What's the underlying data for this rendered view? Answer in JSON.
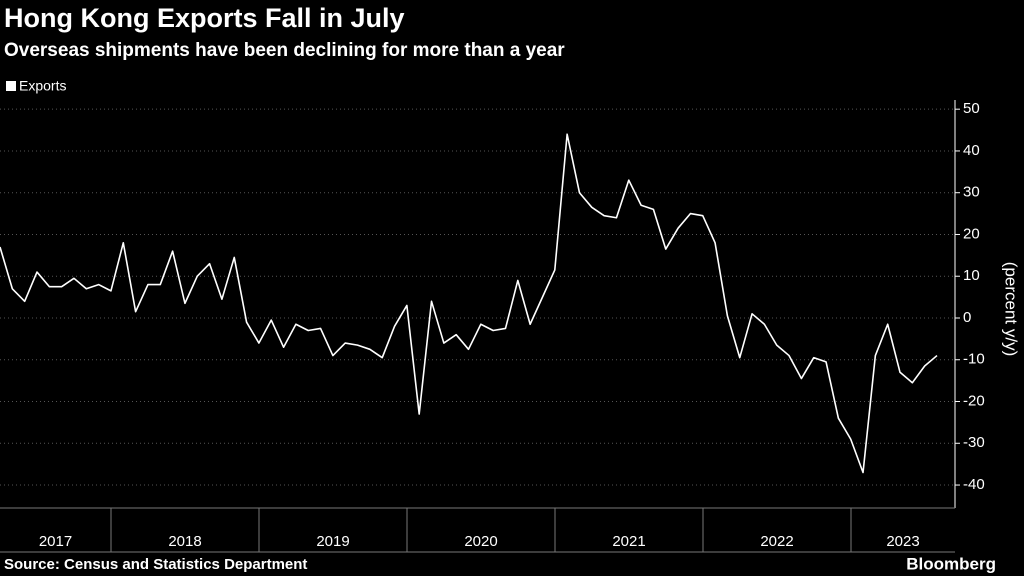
{
  "chart_data": {
    "type": "line",
    "title": "Hong Kong Exports Fall in July",
    "subtitle": "Overseas shipments have been declining for more than a year",
    "y_label": "(percent y/y)",
    "source": "Source: Census and Statistics Department",
    "brand": "Bloomberg",
    "year_labels": [
      "2017",
      "2018",
      "2019",
      "2020",
      "2021",
      "2022",
      "2023"
    ],
    "series": [
      {
        "name": "Exports",
        "color": "#ffffff",
        "values": [
          17,
          7,
          4,
          11,
          7.5,
          7.5,
          9.5,
          7,
          8,
          6.5,
          18,
          1.5,
          8,
          8,
          16,
          3.5,
          10,
          13,
          4.5,
          14.5,
          -1,
          -6,
          -0.5,
          -7,
          -1.5,
          -3,
          -2.5,
          -9,
          -6,
          -6.5,
          -7.5,
          -9.5,
          -2,
          3,
          -23,
          4,
          -6,
          -4,
          -7.5,
          -1.5,
          -3,
          -2.5,
          9,
          -1.5,
          5,
          11.5,
          44,
          30,
          26.5,
          24.5,
          24,
          33,
          27,
          26,
          16.5,
          21.5,
          25,
          24.5,
          18,
          0.5,
          -9.5,
          1,
          -1.5,
          -6.5,
          -9,
          -14.5,
          -9.5,
          -10.5,
          -24,
          -29,
          -37,
          -9,
          -1.5,
          -13,
          -15.5,
          -11.5,
          -9
        ]
      }
    ],
    "ylim": [
      -45.5,
      52.2
    ],
    "yticks": [
      50,
      40,
      30,
      20,
      10,
      0,
      -10,
      -20,
      -30,
      -40
    ],
    "grid": true,
    "legend": "top-left"
  }
}
